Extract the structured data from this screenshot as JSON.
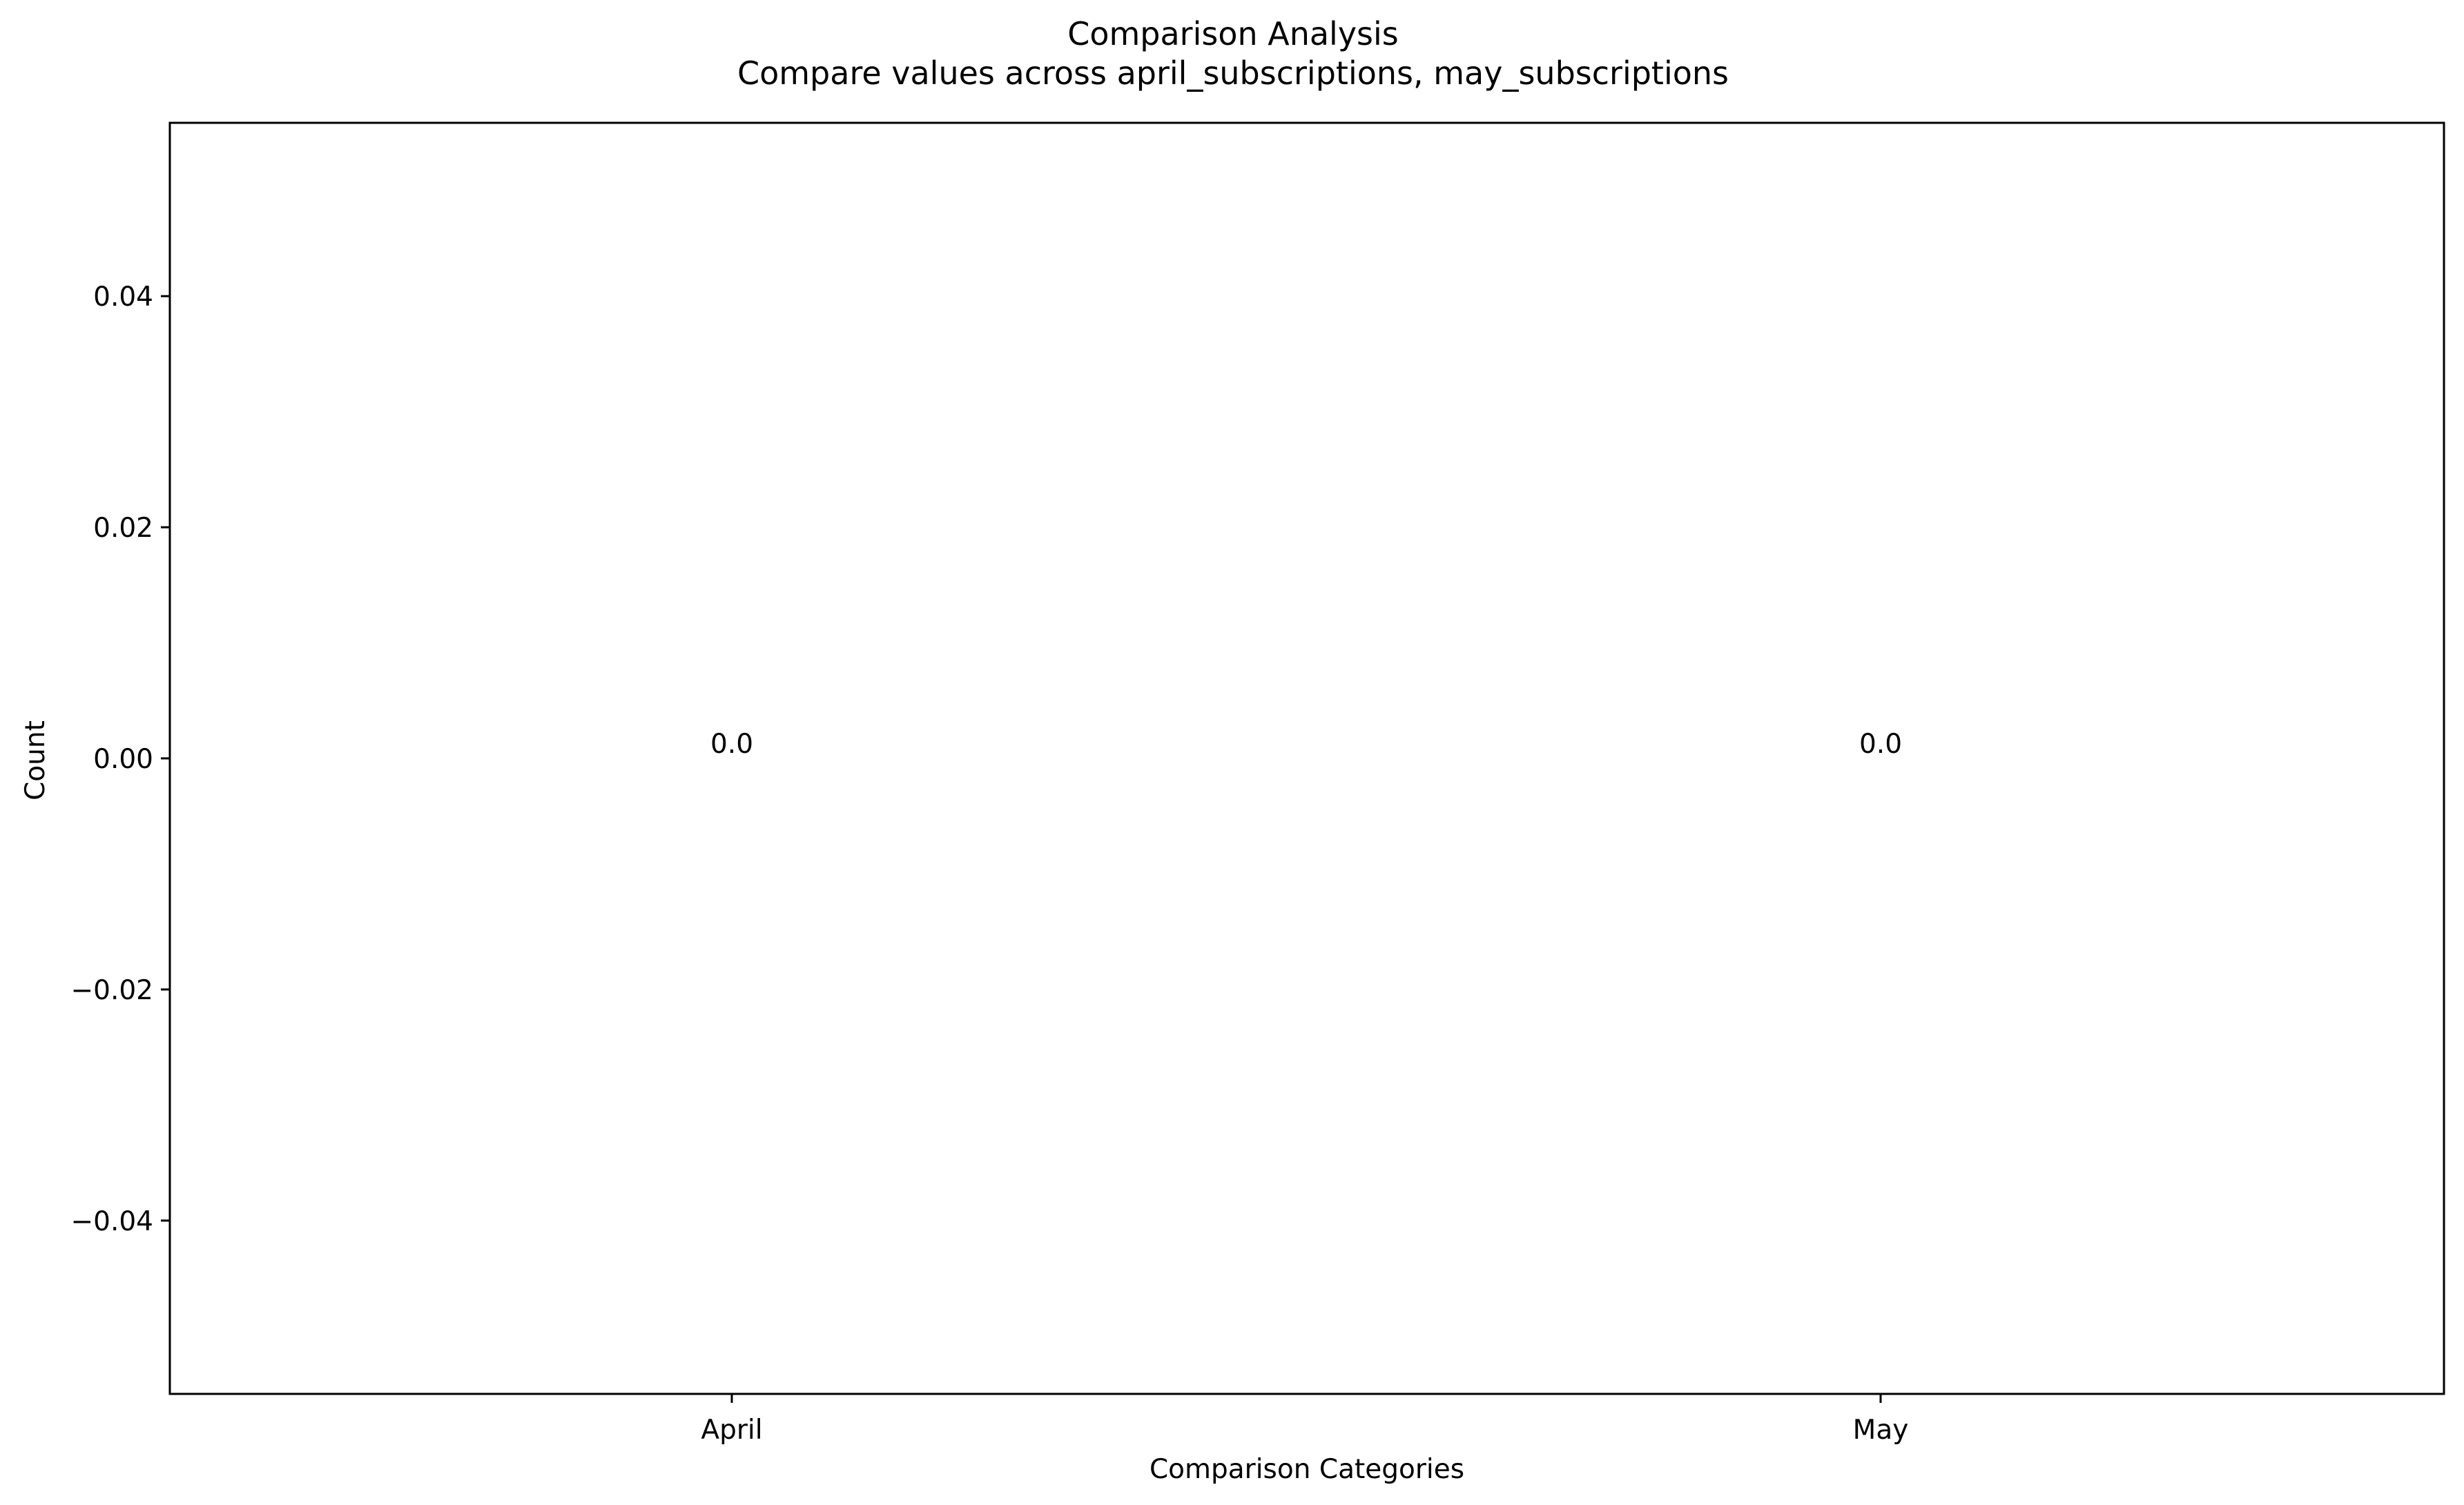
{
  "chart_data": {
    "type": "bar",
    "title": "Comparison Analysis",
    "subtitle": "Compare values across april_subscriptions, may_subscriptions",
    "xlabel": "Comparison Categories",
    "ylabel": "Count",
    "categories": [
      "April",
      "May"
    ],
    "values": [
      0.0,
      0.0
    ],
    "data_labels": [
      "0.0",
      "0.0"
    ],
    "ylim": [
      -0.055,
      0.055
    ],
    "yticks": [
      -0.04,
      -0.02,
      0.0,
      0.02,
      0.04
    ],
    "ytick_labels": [
      "−0.04",
      "−0.02",
      "0.00",
      "0.02",
      "0.04"
    ],
    "grid": false,
    "bar_color": "#1f77b4"
  }
}
